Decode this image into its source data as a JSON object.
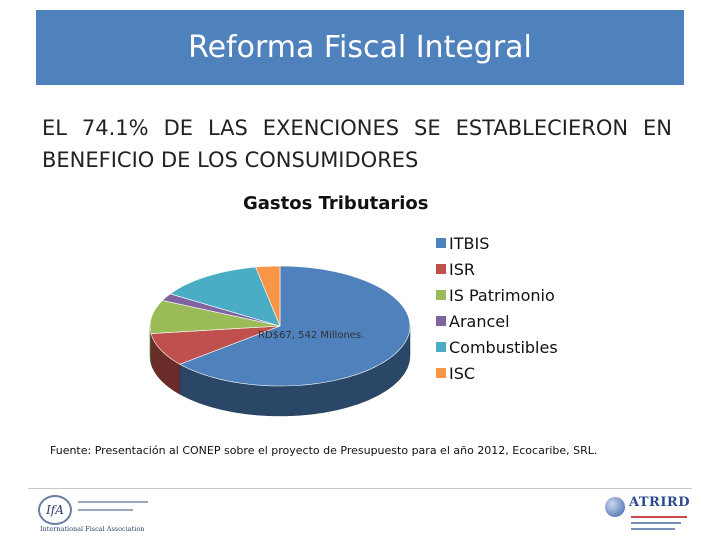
{
  "header": {
    "title": "Reforma Fiscal Integral"
  },
  "subtitle": "EL 74.1% DE LAS EXENCIONES SE ESTABLECIERON EN BENEFICIO DE LOS CONSUMIDORES",
  "chart_data": {
    "type": "pie",
    "title": "Gastos Tributarios",
    "categories": [
      "ITBIS",
      "ISR",
      "IS Patrimonio",
      "Arancel",
      "Combustibles",
      "ISC"
    ],
    "values": [
      64,
      9,
      9,
      2,
      13,
      3
    ],
    "colors": [
      "#4f81bd",
      "#c0504d",
      "#9bbb59",
      "#8064a2",
      "#4bacc6",
      "#f79646"
    ],
    "annotation": "RD$67, 542 Millones.",
    "style": "3d",
    "legend": "right"
  },
  "source": "Fuente: Presentación al CONEP sobre el proyecto de Presupuesto para el año 2012, Ecocaribe, SRL.",
  "footer": {
    "left_logo": {
      "mark": "IfA",
      "org": "International Fiscal Association"
    },
    "right_logo": {
      "name": "ATRIRD"
    }
  }
}
